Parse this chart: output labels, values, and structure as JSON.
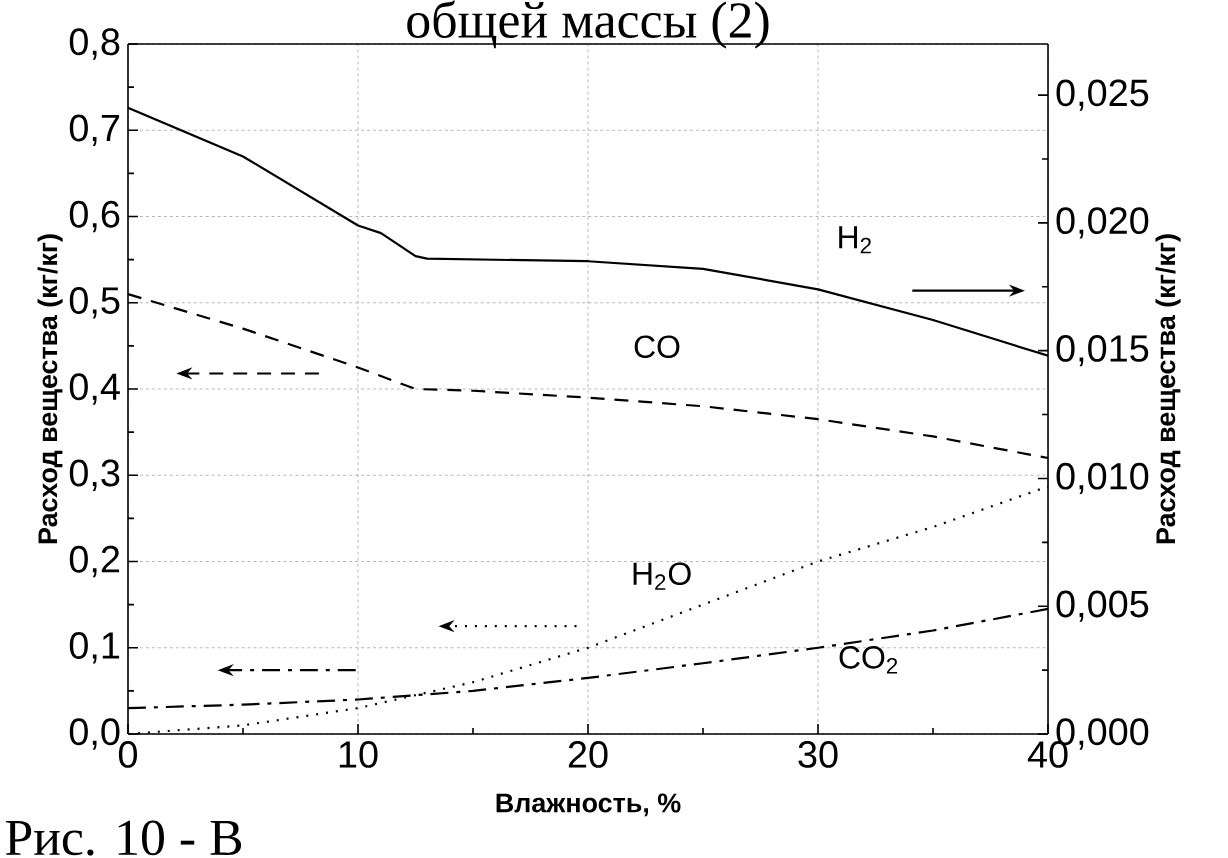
{
  "chart_data": {
    "type": "line",
    "title": "общей массы (2)",
    "xlabel": "Влажность, %",
    "ylabel": "Расход вещества (кг/кг)",
    "y2label": "Расход вещества (кг/кг)",
    "annotations": [
      "Рис. 10 - В"
    ],
    "xlim": [
      0,
      40
    ],
    "xticks": [
      0,
      10,
      20,
      30,
      40
    ],
    "ylim": [
      0,
      0.8
    ],
    "yticks": [
      {
        "value": 0,
        "label": "0,0"
      },
      {
        "value": 0.1,
        "label": "0,1"
      },
      {
        "value": 0.2,
        "label": "0,2"
      },
      {
        "value": 0.3,
        "label": "0,3"
      },
      {
        "value": 0.4,
        "label": "0,4"
      },
      {
        "value": 0.5,
        "label": "0,5"
      },
      {
        "value": 0.6,
        "label": "0,6"
      },
      {
        "value": 0.7,
        "label": "0,7"
      },
      {
        "value": 0.8,
        "label": "0,8"
      }
    ],
    "y2lim": [
      0,
      0.027
    ],
    "y2ticks": [
      {
        "value": 0,
        "label": "0,000"
      },
      {
        "value": 0.005,
        "label": "0,005"
      },
      {
        "value": 0.01,
        "label": "0,010"
      },
      {
        "value": 0.015,
        "label": "0,015"
      },
      {
        "value": 0.02,
        "label": "0,020"
      },
      {
        "value": 0.025,
        "label": "0,025"
      }
    ],
    "grid": true,
    "series": [
      {
        "name": "H$_{2}$",
        "color": "#000000",
        "line_style": "solid",
        "axis": "y2",
        "x": [
          0,
          5,
          10,
          11,
          12.5,
          13,
          20,
          25,
          30,
          35,
          40
        ],
        "values": [
          0.0245,
          0.0226,
          0.0199,
          0.0196,
          0.0187,
          0.0186,
          0.0185,
          0.0182,
          0.0174,
          0.0162,
          0.0148
        ]
      },
      {
        "name": "CO",
        "color": "#000000",
        "line_style": "dashed",
        "x": [
          0,
          5,
          10,
          12.5,
          15,
          20,
          25,
          30,
          35,
          40
        ],
        "values": [
          0.51,
          0.47,
          0.425,
          0.4,
          0.398,
          0.39,
          0.38,
          0.365,
          0.345,
          0.32
        ]
      },
      {
        "name": "H$_{2}$O",
        "color": "#000000",
        "line_style": "dotted",
        "x": [
          0,
          5,
          10,
          15,
          20,
          25,
          30,
          35,
          40
        ],
        "values": [
          0.0,
          0.01,
          0.03,
          0.06,
          0.1,
          0.15,
          0.2,
          0.24,
          0.287
        ]
      },
      {
        "name": "CO$_{2}$",
        "color": "#000000",
        "line_style": "dashdot",
        "x": [
          0,
          5,
          10,
          15,
          20,
          25,
          30,
          35,
          40
        ],
        "values": [
          0.03,
          0.034,
          0.04,
          0.05,
          0.065,
          0.082,
          0.1,
          0.12,
          0.145
        ]
      }
    ]
  }
}
